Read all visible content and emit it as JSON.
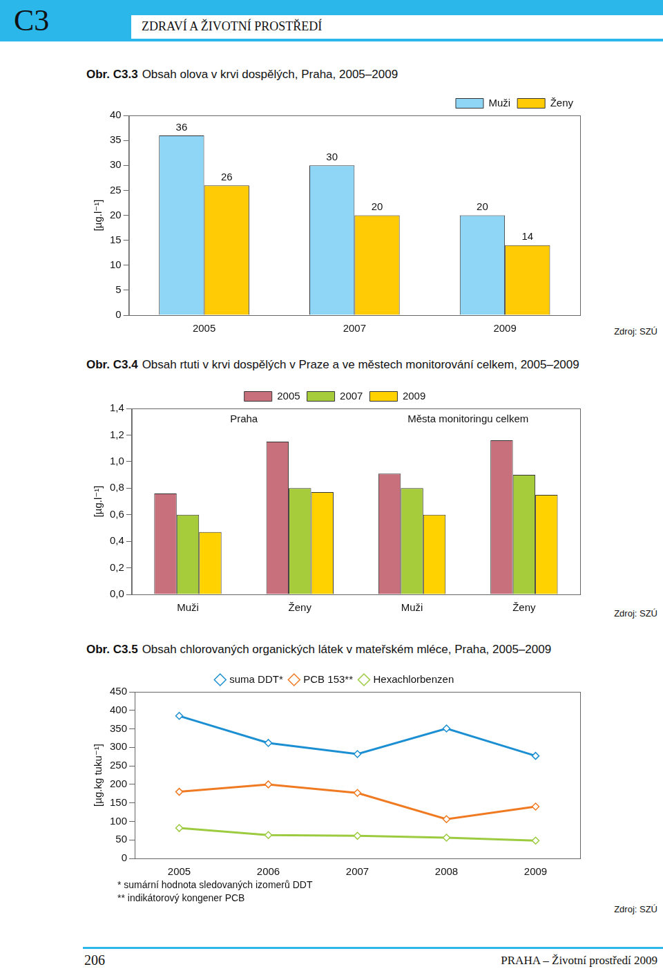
{
  "header": {
    "section": "C3",
    "title": "ZDRAVÍ A ŽIVOTNÍ PROSTŘEDÍ"
  },
  "chart_data": [
    {
      "type": "bar",
      "figure": "Obr. C3.3",
      "title": "Obsah olova v krvi dospělých, Praha, 2005–2009",
      "y_label": "[µg.l⁻¹]",
      "categories": [
        "2005",
        "2007",
        "2009"
      ],
      "series": [
        {
          "name": "Muži",
          "color": "#8fd6f6",
          "values": [
            36,
            30,
            20
          ]
        },
        {
          "name": "Ženy",
          "color": "#ffcb05",
          "values": [
            26,
            20,
            14
          ]
        }
      ],
      "ylim": [
        0,
        40
      ],
      "yticks": [
        0,
        5,
        10,
        15,
        20,
        25,
        30,
        35,
        40
      ],
      "grid": false,
      "legend": "top-right",
      "data_labels": true,
      "source": "Zdroj: SZÚ"
    },
    {
      "type": "bar",
      "figure": "Obr. C3.4",
      "title": "Obsah rtuti v krvi dospělých v Praze a ve městech monitorování celkem, 2005–2009",
      "y_label": "[µg.l⁻¹]",
      "categories": [
        "Muži",
        "Ženy",
        "Muži",
        "Ženy"
      ],
      "category_groups": [
        "Praha",
        "Praha",
        "Města monitoringu celkem",
        "Města monitoringu celkem"
      ],
      "series": [
        {
          "name": "2005",
          "color": "#c8707b",
          "values": [
            0.76,
            1.15,
            0.91,
            1.16
          ]
        },
        {
          "name": "2007",
          "color": "#a6cb3b",
          "values": [
            0.6,
            0.8,
            0.8,
            0.9
          ]
        },
        {
          "name": "2009",
          "color": "#ffd200",
          "values": [
            0.47,
            0.77,
            0.6,
            0.75
          ]
        }
      ],
      "ylim": [
        0,
        1.4
      ],
      "yticks": [
        {
          "value": 0,
          "label": "0,0"
        },
        {
          "value": 0.2,
          "label": "0,2"
        },
        {
          "value": 0.4,
          "label": "0,4"
        },
        {
          "value": 0.6,
          "label": "0,6"
        },
        {
          "value": 0.8,
          "label": "0,8"
        },
        {
          "value": 1.0,
          "label": "1,0"
        },
        {
          "value": 1.2,
          "label": "1,2"
        },
        {
          "value": 1.4,
          "label": "1,4"
        }
      ],
      "grid": false,
      "legend": "top",
      "data_labels": false,
      "source": "Zdroj: SZÚ"
    },
    {
      "type": "line",
      "figure": "Obr. C3.5",
      "title": "Obsah chlorovaných organických látek v mateřském mléce, Praha, 2005–2009",
      "y_label": "[µg.kg tuku⁻¹]",
      "categories": [
        "2005",
        "2006",
        "2007",
        "2008",
        "2009"
      ],
      "series": [
        {
          "name": "suma DDT*",
          "color": "#1b8fd2",
          "marker": "diamond",
          "values": [
            385,
            312,
            282,
            351,
            277
          ]
        },
        {
          "name": "PCB 153**",
          "color": "#f07a22",
          "marker": "diamond",
          "values": [
            180,
            200,
            177,
            106,
            140
          ]
        },
        {
          "name": "Hexachlorbenzen",
          "color": "#9ccb3f",
          "marker": "diamond",
          "values": [
            82,
            63,
            61,
            56,
            48
          ]
        }
      ],
      "ylim": [
        0,
        450
      ],
      "yticks": [
        0,
        50,
        100,
        150,
        200,
        250,
        300,
        350,
        400,
        450
      ],
      "grid": false,
      "legend": "top",
      "notes": [
        "* sumární hodnota sledovaných izomerů DDT",
        "** indikátorový kongener PCB"
      ],
      "source": "Zdroj: SZÚ"
    }
  ],
  "footer": {
    "page": "206",
    "publication": "PRAHA – Životní prostředí 2009"
  }
}
